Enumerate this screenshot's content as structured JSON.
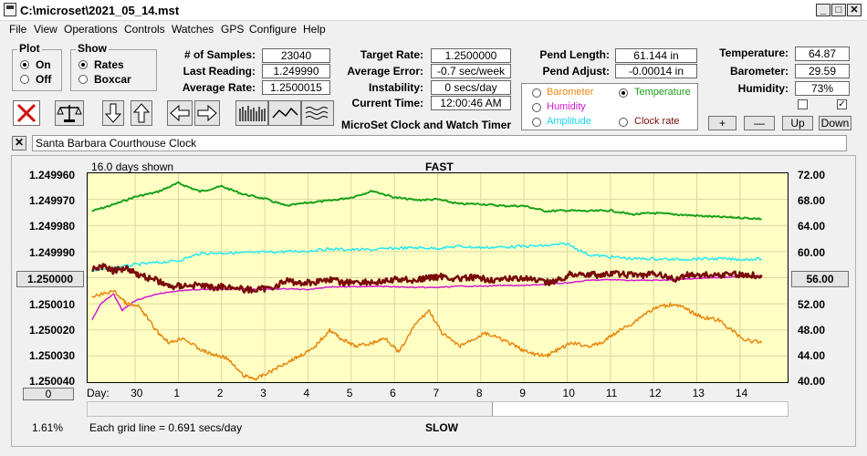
{
  "window": {
    "title": "C:\\microset\\2021_05_14.mst"
  },
  "menu": [
    "File",
    "View",
    "Operations",
    "Controls",
    "Watches",
    "GPS",
    "Configure",
    "Help"
  ],
  "plot_group": {
    "title": "Plot",
    "options": [
      "On",
      "Off"
    ],
    "selected": "On"
  },
  "show_group": {
    "title": "Show",
    "options": [
      "Rates",
      "Boxcar"
    ],
    "selected": "Rates"
  },
  "stats": {
    "samples_label": "# of Samples:",
    "samples": "23040",
    "last_reading_label": "Last Reading:",
    "last_reading": "1.249990",
    "average_rate_label": "Average Rate:",
    "average_rate": "1.2500015",
    "target_rate_label": "Target Rate:",
    "target_rate": "1.2500000",
    "average_error_label": "Average Error:",
    "average_error": "-0.7 sec/week",
    "instability_label": "Instability:",
    "instability": "0 secs/day",
    "current_time_label": "Current Time:",
    "current_time": "12:00:46 AM",
    "pend_length_label": "Pend Length:",
    "pend_length": "61.144 in",
    "pend_adjust_label": "Pend Adjust:",
    "pend_adjust": "-0.00014 in",
    "temperature_label": "Temperature:",
    "temperature": "64.87",
    "barometer_label": "Barometer:",
    "barometer": "29.59",
    "humidity_label": "Humidity:",
    "humidity": "73%"
  },
  "product_title": "MicroSet Clock and Watch Timer",
  "series_legend": [
    {
      "label": "Barometer",
      "color": "#e8870e",
      "selected": false
    },
    {
      "label": "Temperature",
      "color": "#1aa01a",
      "selected": true
    },
    {
      "label": "Humidity",
      "color": "#d11ad1",
      "selected": false
    },
    {
      "label": "Amplitude",
      "color": "#1ad3e8",
      "selected": false
    },
    {
      "label": "Clock rate",
      "color": "#7a0a0a",
      "selected": false
    }
  ],
  "small_buttons": [
    "+",
    "—",
    "Up",
    "Down"
  ],
  "checkboxes": [
    false,
    true
  ],
  "watch_name": "Santa Barbara Courthouse Clock",
  "graph": {
    "days_shown": "16.0 days shown",
    "top_label": "FAST",
    "bottom_label": "SLOW",
    "grid_note": "Each grid line = 0.691 secs/day",
    "percent": "1.61%",
    "left_button": "0",
    "right_button": "56.00",
    "left_axis_button": "1.250000",
    "day_label": "Day:"
  },
  "colors": {
    "plot_bg": "#ffffc4",
    "clock_rate": "#7a0a0a",
    "temperature": "#1aa01a",
    "amplitude": "#26e8f0",
    "humidity": "#d11ad1",
    "barometer": "#e8870e",
    "delete_red": "#d01010"
  },
  "chart_data": {
    "type": "line",
    "title": "",
    "y_left_ticks": [
      "1.249960",
      "1.249970",
      "1.249980",
      "1.249990",
      "1.250000",
      "1.250010",
      "1.250020",
      "1.250030",
      "1.250040"
    ],
    "y_right_ticks": [
      "72.00",
      "68.00",
      "64.00",
      "60.00",
      "56.00",
      "52.00",
      "48.00",
      "44.00",
      "40.00"
    ],
    "x_ticks": [
      "30",
      "1",
      "2",
      "3",
      "4",
      "5",
      "6",
      "7",
      "8",
      "9",
      "10",
      "11",
      "12",
      "13",
      "14"
    ],
    "x_tick_pos": [
      0.5,
      1.5,
      2.5,
      3.5,
      4.5,
      5.5,
      6.5,
      7.5,
      8.5,
      9.5,
      10.5,
      11.5,
      12.5,
      13.5,
      14.5
    ],
    "x_range": [
      -0.6,
      15.6
    ],
    "y_range": [
      1.24996,
      1.25004
    ],
    "right_range": [
      72.0,
      40.0
    ],
    "series": [
      {
        "name": "Temperature",
        "axis": "right",
        "x": [
          -0.5,
          0,
          0.5,
          1,
          1.5,
          2,
          2.5,
          3,
          3.5,
          4,
          4.5,
          5,
          5.5,
          6,
          6.5,
          7,
          7.5,
          8,
          8.5,
          9,
          9.5,
          10,
          10.5,
          11,
          11.5,
          12,
          12.5,
          13,
          13.5,
          14,
          14.5,
          15
        ],
        "values": [
          66.2,
          67.2,
          68.4,
          69.1,
          70.5,
          69.2,
          70.0,
          68.8,
          68.1,
          67.0,
          67.5,
          67.8,
          68.3,
          69.3,
          68.3,
          67.9,
          68.0,
          67.3,
          67.3,
          67.0,
          67.0,
          66.2,
          66.3,
          66.2,
          66.3,
          65.7,
          65.9,
          65.7,
          65.5,
          65.3,
          65.2,
          65.0
        ]
      },
      {
        "name": "Amplitude",
        "axis": "right",
        "x": [
          -0.5,
          0,
          0.5,
          1,
          1.5,
          2,
          2.5,
          3,
          3.5,
          4,
          4.5,
          5,
          5.5,
          6,
          6.5,
          7,
          7.5,
          8,
          8.5,
          9,
          9.5,
          10,
          10.5,
          11,
          11.5,
          12,
          12.5,
          13,
          13.5,
          14,
          14.5,
          15
        ],
        "values": [
          57.0,
          57.5,
          58.0,
          58.3,
          58.6,
          59.7,
          59.8,
          59.8,
          59.9,
          60.0,
          60.1,
          60.4,
          60.3,
          60.3,
          60.5,
          60.6,
          60.5,
          60.8,
          60.6,
          60.7,
          60.8,
          60.9,
          61.2,
          59.5,
          59.2,
          58.9,
          58.9,
          58.8,
          58.9,
          58.9,
          58.8,
          58.9
        ]
      },
      {
        "name": "Humidity",
        "axis": "right",
        "x": [
          -0.5,
          -0.3,
          0,
          0.2,
          0.5,
          1,
          1.5,
          2,
          2.5,
          3,
          3.5,
          4,
          4.5,
          5,
          5.5,
          6,
          6.5,
          7,
          7.5,
          8,
          8.5,
          9,
          9.5,
          10,
          10.5,
          11,
          11.5,
          12,
          12.5,
          13,
          13.5,
          14,
          14.5,
          15
        ],
        "values": [
          49.5,
          52.0,
          53.5,
          51.0,
          52.5,
          53.5,
          54.0,
          54.2,
          54.2,
          54.3,
          54.2,
          54.3,
          54.2,
          54.6,
          54.6,
          54.7,
          54.6,
          54.5,
          54.5,
          54.7,
          54.7,
          54.8,
          54.8,
          55.0,
          55.2,
          55.6,
          55.7,
          55.6,
          55.6,
          55.7,
          55.9,
          56.0,
          56.2,
          56.3
        ]
      },
      {
        "name": "Barometer",
        "axis": "right",
        "x": [
          -0.5,
          0,
          0.3,
          0.6,
          1,
          1.3,
          1.6,
          2,
          2.3,
          2.6,
          3,
          3.3,
          3.6,
          4,
          4.3,
          4.6,
          5,
          5.3,
          5.6,
          6,
          6.3,
          6.6,
          7,
          7.3,
          7.6,
          8,
          8.3,
          8.6,
          9,
          9.3,
          9.6,
          10,
          10.3,
          10.6,
          11,
          11.3,
          11.6,
          12,
          12.3,
          12.6,
          13,
          13.3,
          13.6,
          14,
          14.3,
          14.6,
          15
        ],
        "values": [
          53.0,
          54.0,
          52.0,
          51.5,
          47.8,
          46.0,
          46.8,
          45.0,
          44.2,
          43.8,
          41.0,
          40.5,
          41.5,
          43.0,
          44.0,
          45.0,
          48.0,
          46.5,
          45.5,
          46.0,
          46.8,
          44.5,
          49.0,
          51.0,
          47.5,
          45.5,
          46.5,
          47.5,
          46.5,
          45.5,
          44.5,
          44.0,
          45.0,
          46.0,
          45.5,
          46.0,
          47.5,
          49.0,
          50.5,
          51.5,
          52.0,
          51.0,
          50.0,
          49.5,
          48.0,
          46.5,
          46.0
        ]
      },
      {
        "name": "Clock rate",
        "axis": "left",
        "x": [
          -0.5,
          -0.2,
          0,
          0.3,
          0.6,
          1,
          1.3,
          1.6,
          2,
          2.3,
          2.6,
          3,
          3.3,
          3.6,
          4,
          4.3,
          4.6,
          5,
          5.3,
          5.6,
          6,
          6.3,
          6.6,
          7,
          7.3,
          7.6,
          8,
          8.3,
          8.6,
          9,
          9.3,
          9.6,
          10,
          10.3,
          10.6,
          11,
          11.3,
          11.6,
          12,
          12.3,
          12.6,
          13,
          13.3,
          13.6,
          14,
          14.3,
          14.6,
          15
        ],
        "values": [
          1.2499965,
          1.2499955,
          1.2499975,
          1.249996,
          1.249999,
          1.250001,
          1.2500035,
          1.250003,
          1.2500028,
          1.2500038,
          1.2500032,
          1.2500045,
          1.2500047,
          1.250004,
          1.2500012,
          1.250002,
          1.2500018,
          1.2500005,
          1.250002,
          1.2500014,
          1.2500018,
          1.2500015,
          1.2500005,
          1.250001,
          1.25,
          1.2499995,
          1.2500005,
          1.25,
          1.2500005,
          1.250001,
          1.25,
          1.2500005,
          1.250002,
          1.250001,
          1.2499985,
          1.2499987,
          1.249999,
          1.2499985,
          1.249999,
          1.249999,
          1.2499985,
          1.2500008,
          1.2499988,
          1.249999,
          1.249999,
          1.2499985,
          1.249999,
          1.249999
        ]
      }
    ]
  }
}
